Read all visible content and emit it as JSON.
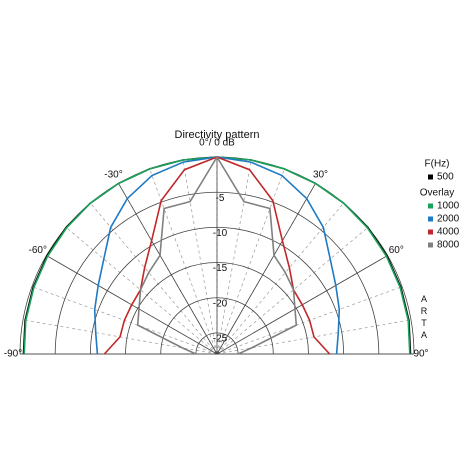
{
  "chart_data": {
    "type": "polar",
    "title": "Directivity pattern",
    "theta": [
      -90,
      -80,
      -70,
      -60,
      -50,
      -40,
      -30,
      -20,
      -10,
      0,
      10,
      20,
      30,
      40,
      50,
      60,
      70,
      80,
      90
    ],
    "series": [
      {
        "name": "500",
        "color": "#000000",
        "values": [
          -0.5,
          -0.3,
          -0.2,
          -0.1,
          0,
          0,
          0,
          0,
          0,
          0,
          0,
          0,
          0,
          0,
          0,
          -0.1,
          -0.2,
          -0.3,
          -0.5
        ]
      },
      {
        "name": "1000",
        "color": "#1aa35a",
        "values": [
          -0.6,
          -0.4,
          -0.3,
          -0.2,
          -0.1,
          0,
          0,
          0,
          0,
          0,
          0,
          0,
          0,
          0,
          -0.1,
          -0.2,
          -0.3,
          -0.4,
          -0.6
        ]
      },
      {
        "name": "2000",
        "color": "#1f7ac4",
        "values": [
          -11,
          -10.5,
          -9.5,
          -8.5,
          -7,
          -4.5,
          -2.5,
          -1,
          -0.3,
          0,
          -0.3,
          -1,
          -2.5,
          -4.5,
          -7,
          -8.5,
          -9.5,
          -10.5,
          -11
        ]
      },
      {
        "name": "4000",
        "color": "#c0282a",
        "values": [
          -12,
          -14,
          -14,
          -14,
          -13.8,
          -12,
          -9.4,
          -4.8,
          -1.4,
          0,
          -1.4,
          -4.8,
          -9.4,
          -12,
          -13.8,
          -14,
          -14,
          -14,
          -12
        ]
      },
      {
        "name": "8000",
        "color": "#808080",
        "values": [
          -25,
          -23,
          -16,
          -15.2,
          -13.8,
          -12.9,
          -11.8,
          -6,
          -6,
          0,
          -6,
          -6,
          -11.8,
          -12.9,
          -13.8,
          -15.2,
          -16,
          -23,
          -25
        ]
      }
    ],
    "legend_title": "F(Hz)",
    "overlay_label": "Overlay",
    "watermark": "ARTA",
    "rlim": [
      -28,
      0
    ],
    "rticks": [
      -25,
      -20,
      -15,
      -10,
      -5,
      0
    ],
    "thetaticks": [
      {
        "value": -90,
        "label": "-90°"
      },
      {
        "value": -60,
        "label": "-60°"
      },
      {
        "value": -30,
        "label": "-30°"
      },
      {
        "value": 0,
        "label": "0°/ 0 dB"
      },
      {
        "value": 30,
        "label": "30°"
      },
      {
        "value": 60,
        "label": "60°"
      },
      {
        "value": 90,
        "label": "90°"
      }
    ]
  }
}
